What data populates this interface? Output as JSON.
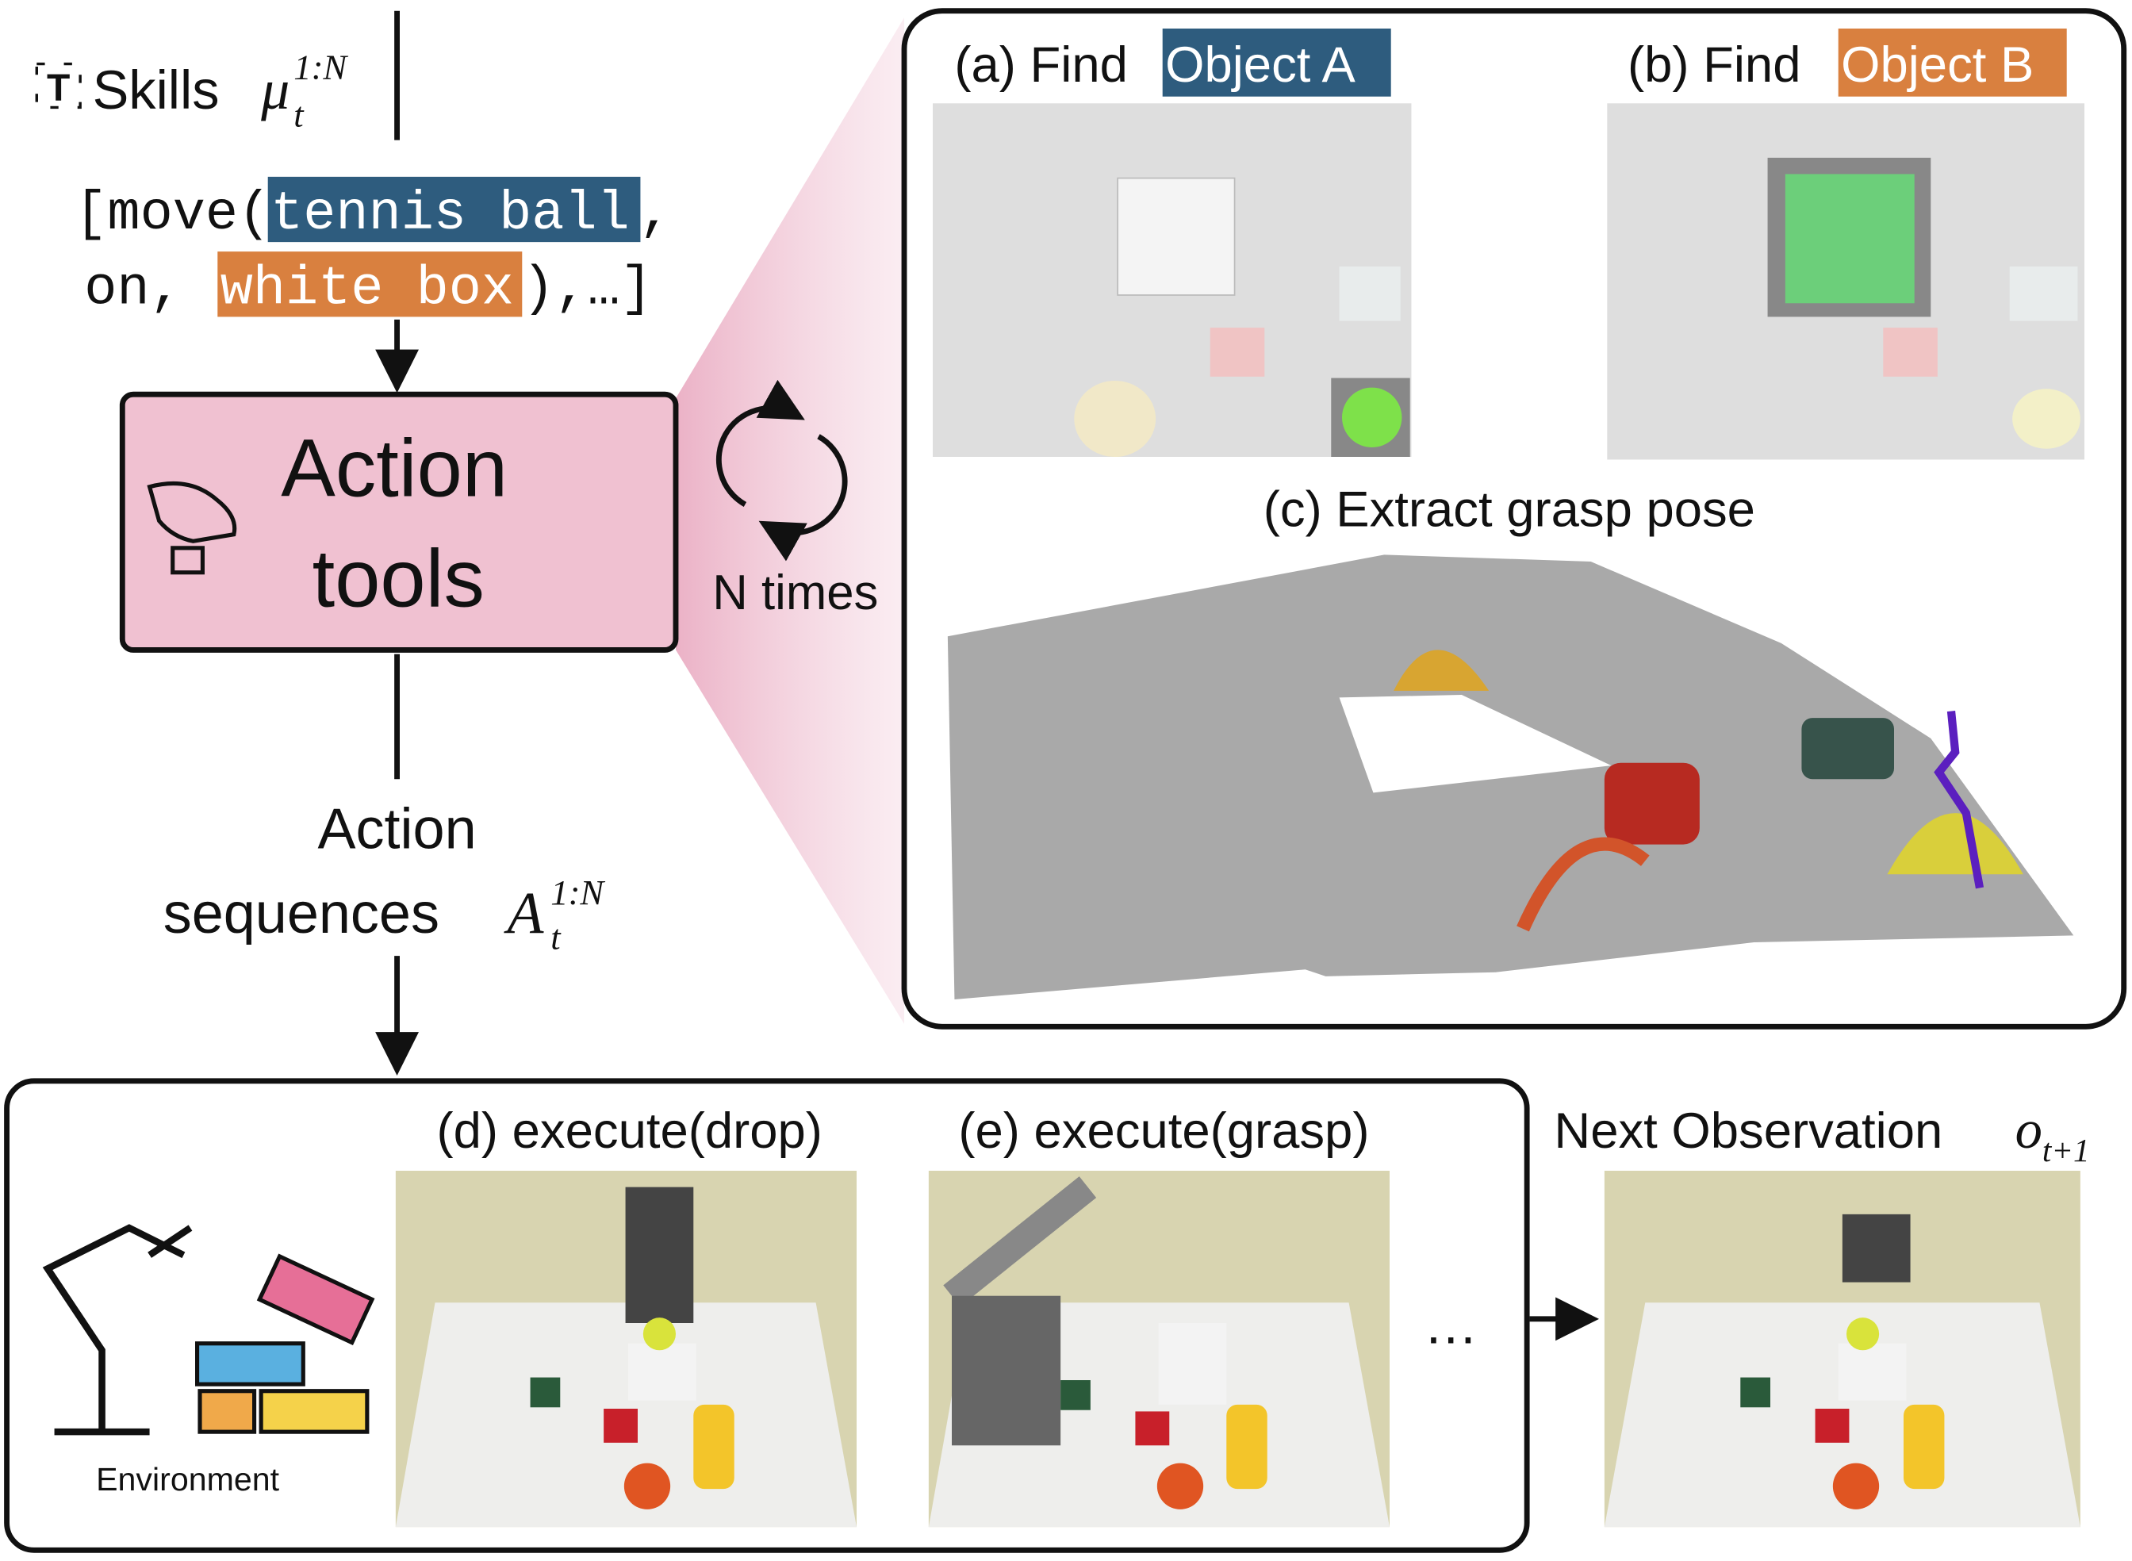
{
  "skills": {
    "label": "Skills",
    "symbol": "μ",
    "sup": "1:N",
    "sub": "t"
  },
  "skill_sequence": {
    "open": "[move(",
    "object_a": "tennis ball",
    "comma": ",",
    "relation": "on,",
    "object_b": "white box",
    "close": "),…]"
  },
  "action_tools": {
    "line1": "Action",
    "line2": "tools"
  },
  "loop_label": "N times",
  "action_sequences": {
    "line1": "Action",
    "line2": "sequences",
    "symbol": "A",
    "sup": "1:N",
    "sub": "t"
  },
  "panels": {
    "a": {
      "prefix": "(a) Find",
      "highlight": "Object A"
    },
    "b": {
      "prefix": "(b) Find",
      "highlight": "Object B"
    },
    "c": {
      "title": "(c) Extract grasp pose"
    },
    "d": {
      "title": "(d) execute(drop)"
    },
    "e": {
      "title": "(e) execute(grasp)"
    },
    "ellipsis": "…",
    "next": {
      "label": "Next Observation",
      "symbol": "o",
      "sub": "t+1"
    }
  },
  "environment_label": "Environment"
}
